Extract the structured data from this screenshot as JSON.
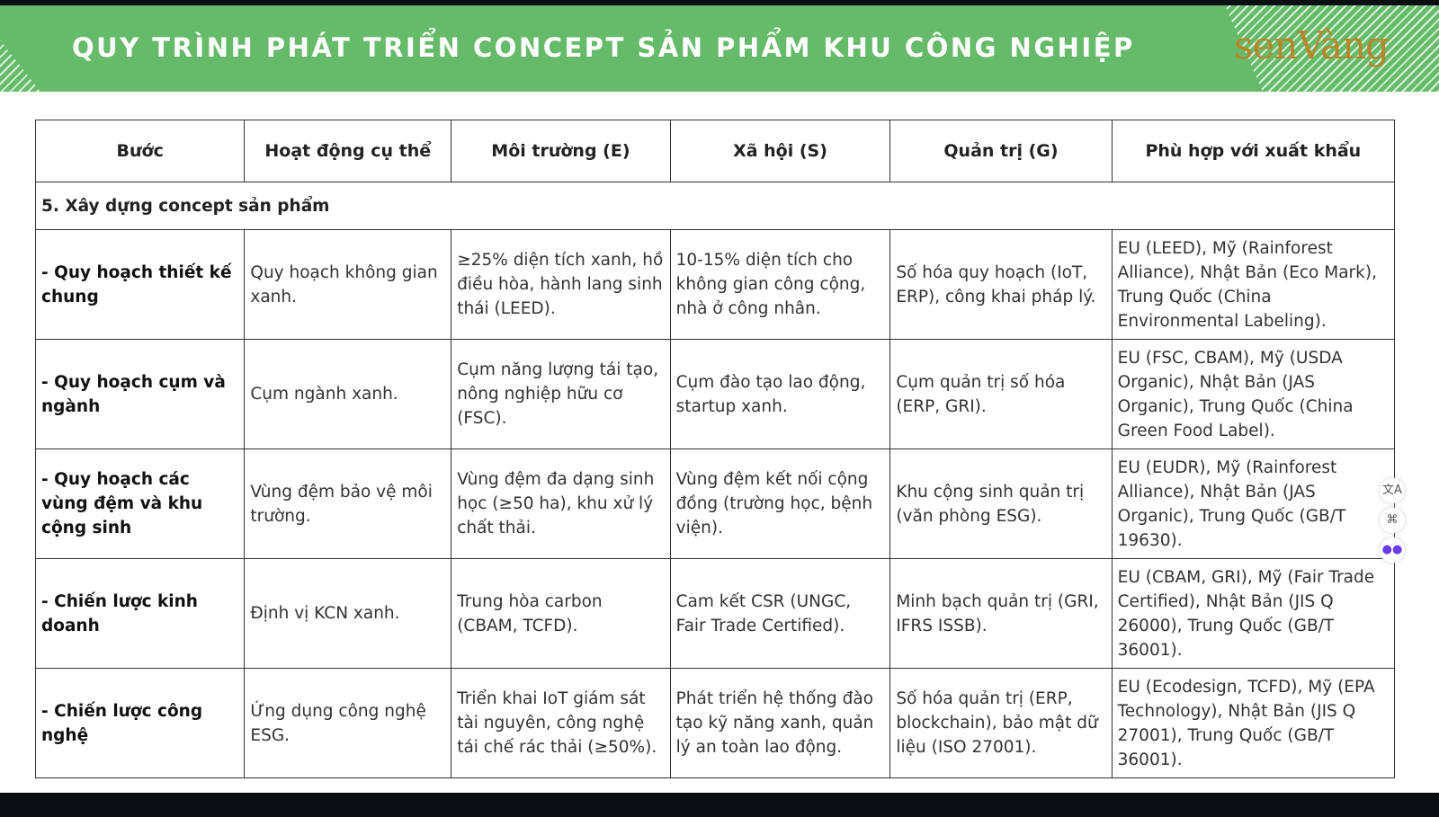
{
  "header": {
    "title": "QUY TRÌNH PHÁT TRIỂN CONCEPT SẢN PHẨM KHU CÔNG NGHIỆP",
    "logo": "senVàng"
  },
  "table": {
    "columns": [
      "Bước",
      "Hoạt động cụ thể",
      "Môi trường (E)",
      "Xã hội (S)",
      "Quản trị (G)",
      "Phù hợp với xuất khẩu"
    ],
    "section": "5. Xây dựng concept sản phẩm",
    "rows": [
      [
        "- Quy hoạch thiết kế chung",
        "Quy hoạch không gian xanh.",
        "≥25% diện tích xanh, hồ điều hòa, hành lang sinh thái (LEED).",
        "10-15% diện tích cho không gian công cộng, nhà ở công nhân.",
        "Số hóa quy hoạch (IoT, ERP), công khai pháp lý.",
        "EU (LEED), Mỹ (Rainforest Alliance), Nhật Bản (Eco Mark), Trung Quốc (China Environmental Labeling)."
      ],
      [
        "- Quy hoạch cụm và ngành",
        "Cụm ngành xanh.",
        "Cụm năng lượng tái tạo, nông nghiệp hữu cơ (FSC).",
        "Cụm đào tạo lao động, startup xanh.",
        "Cụm quản trị số hóa (ERP, GRI).",
        "EU (FSC, CBAM), Mỹ (USDA Organic), Nhật Bản (JAS Organic), Trung Quốc (China Green Food Label)."
      ],
      [
        "- Quy hoạch các vùng đệm và khu cộng sinh",
        "Vùng đệm bảo vệ môi trường.",
        "Vùng đệm đa dạng sinh học (≥50 ha), khu xử lý chất thải.",
        "Vùng đệm kết nối cộng đồng (trường học, bệnh viện).",
        "Khu cộng sinh quản trị (văn phòng ESG).",
        "EU (EUDR), Mỹ (Rainforest Alliance), Nhật Bản (JAS Organic), Trung Quốc (GB/T 19630)."
      ],
      [
        "- Chiến lược kinh doanh",
        "Định vị KCN xanh.",
        "Trung hòa carbon (CBAM, TCFD).",
        "Cam kết CSR (UNGC, Fair Trade Certified).",
        "Minh bạch quản trị (GRI, IFRS ISSB).",
        "EU (CBAM, GRI), Mỹ (Fair Trade Certified), Nhật Bản (JIS Q 26000), Trung Quốc (GB/T 36001)."
      ],
      [
        "- Chiến lược công nghệ",
        "Ứng dụng công nghệ ESG.",
        "Triển khai IoT giám sát tài nguyên, công nghệ tái chế rác thải (≥50%).",
        "Phát triển hệ thống đào tạo kỹ năng xanh, quản lý an toàn lao động.",
        "Số hóa quản trị (ERP, blockchain), bảo mật dữ liệu (ISO 27001).",
        "EU (Ecodesign, TCFD), Mỹ (EPA Technology), Nhật Bản (JIS Q 27001), Trung Quốc (GB/T 36001)."
      ]
    ]
  },
  "colors": {
    "banner": "#66bb6a",
    "logo": "#b7852c"
  },
  "side_icons": [
    "translate-icon",
    "apps-icon",
    "assistant-icon"
  ]
}
